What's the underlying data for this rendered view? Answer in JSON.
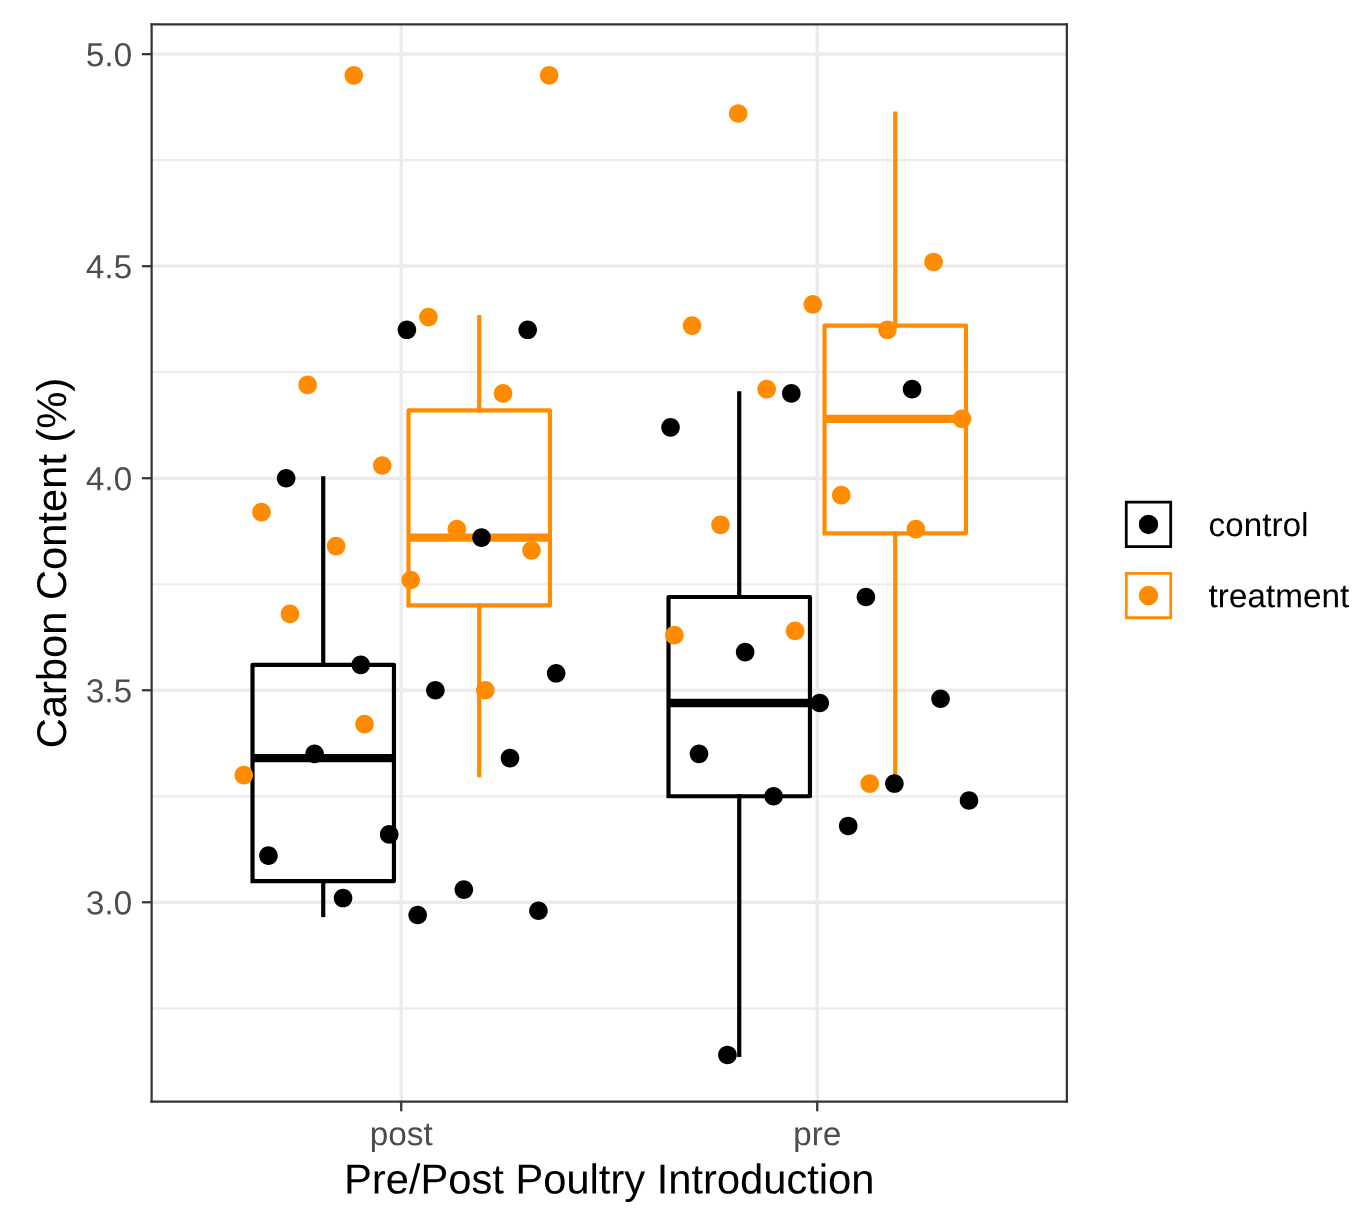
{
  "chart_data": {
    "type": "box",
    "xlabel": "Pre/Post Poultry Introduction",
    "ylabel": "Carbon Content (%)",
    "categories": [
      "post",
      "pre"
    ],
    "ylim": [
      2.53,
      5.07
    ],
    "yticks": [
      {
        "value": 3,
        "label": "3.0"
      },
      {
        "value": 3.5,
        "label": "3.5"
      },
      {
        "value": 4,
        "label": "4.0"
      },
      {
        "value": 4.5,
        "label": "4.5"
      },
      {
        "value": 5,
        "label": "5.0"
      }
    ],
    "grid": true,
    "legend": "right",
    "series": [
      {
        "name": "control",
        "color": "#000000",
        "boxes": [
          {
            "low": 2.97,
            "q1": 3.05,
            "median": 3.34,
            "q3": 3.56,
            "high": 4.0
          },
          {
            "low": 2.64,
            "q1": 3.25,
            "median": 3.47,
            "q3": 3.72,
            "high": 4.2
          }
        ]
      },
      {
        "name": "treatment",
        "color": "#ff8c00",
        "boxes": [
          {
            "low": 3.3,
            "q1": 3.7,
            "median": 3.86,
            "q3": 4.16,
            "high": 4.38
          },
          {
            "low": 3.28,
            "q1": 3.87,
            "median": 4.14,
            "q3": 4.36,
            "high": 4.86
          }
        ]
      },
      {
        "type": "scatter",
        "color": "#000000",
        "marker": "circle",
        "x": [
          "post",
          "post",
          "post",
          "post",
          "post",
          "post",
          "post",
          "post",
          "post",
          "post",
          "post",
          "post",
          "post",
          "post",
          "post"
        ],
        "values": [
          4.35,
          4.35,
          4.0,
          3.86,
          3.56,
          3.54,
          3.5,
          3.35,
          3.34,
          3.16,
          3.11,
          3.03,
          3.01,
          2.98,
          2.97
        ]
      },
      {
        "type": "scatter",
        "color": "#ff8c00",
        "marker": "circle",
        "x": [
          "post",
          "post",
          "post",
          "post",
          "post",
          "post",
          "post",
          "post",
          "post",
          "post",
          "post",
          "post",
          "post",
          "post",
          "post"
        ],
        "values": [
          4.95,
          4.95,
          4.38,
          4.22,
          4.2,
          4.03,
          3.92,
          3.88,
          3.84,
          3.83,
          3.76,
          3.68,
          3.5,
          3.42,
          3.3
        ]
      },
      {
        "type": "scatter",
        "color": "#000000",
        "marker": "circle",
        "x": [
          "pre",
          "pre",
          "pre",
          "pre",
          "pre",
          "pre",
          "pre",
          "pre",
          "pre",
          "pre",
          "pre",
          "pre",
          "pre"
        ],
        "values": [
          4.21,
          4.2,
          4.12,
          3.72,
          3.59,
          3.48,
          3.47,
          3.35,
          3.28,
          3.25,
          3.24,
          3.18,
          2.64
        ]
      },
      {
        "type": "scatter",
        "color": "#ff8c00",
        "marker": "circle",
        "x": [
          "pre",
          "pre",
          "pre",
          "pre",
          "pre",
          "pre",
          "pre",
          "pre",
          "pre",
          "pre",
          "pre",
          "pre",
          "pre"
        ],
        "values": [
          4.86,
          4.51,
          4.41,
          4.36,
          4.35,
          4.21,
          4.14,
          3.96,
          3.89,
          3.88,
          3.64,
          3.63,
          3.28
        ]
      }
    ]
  }
}
